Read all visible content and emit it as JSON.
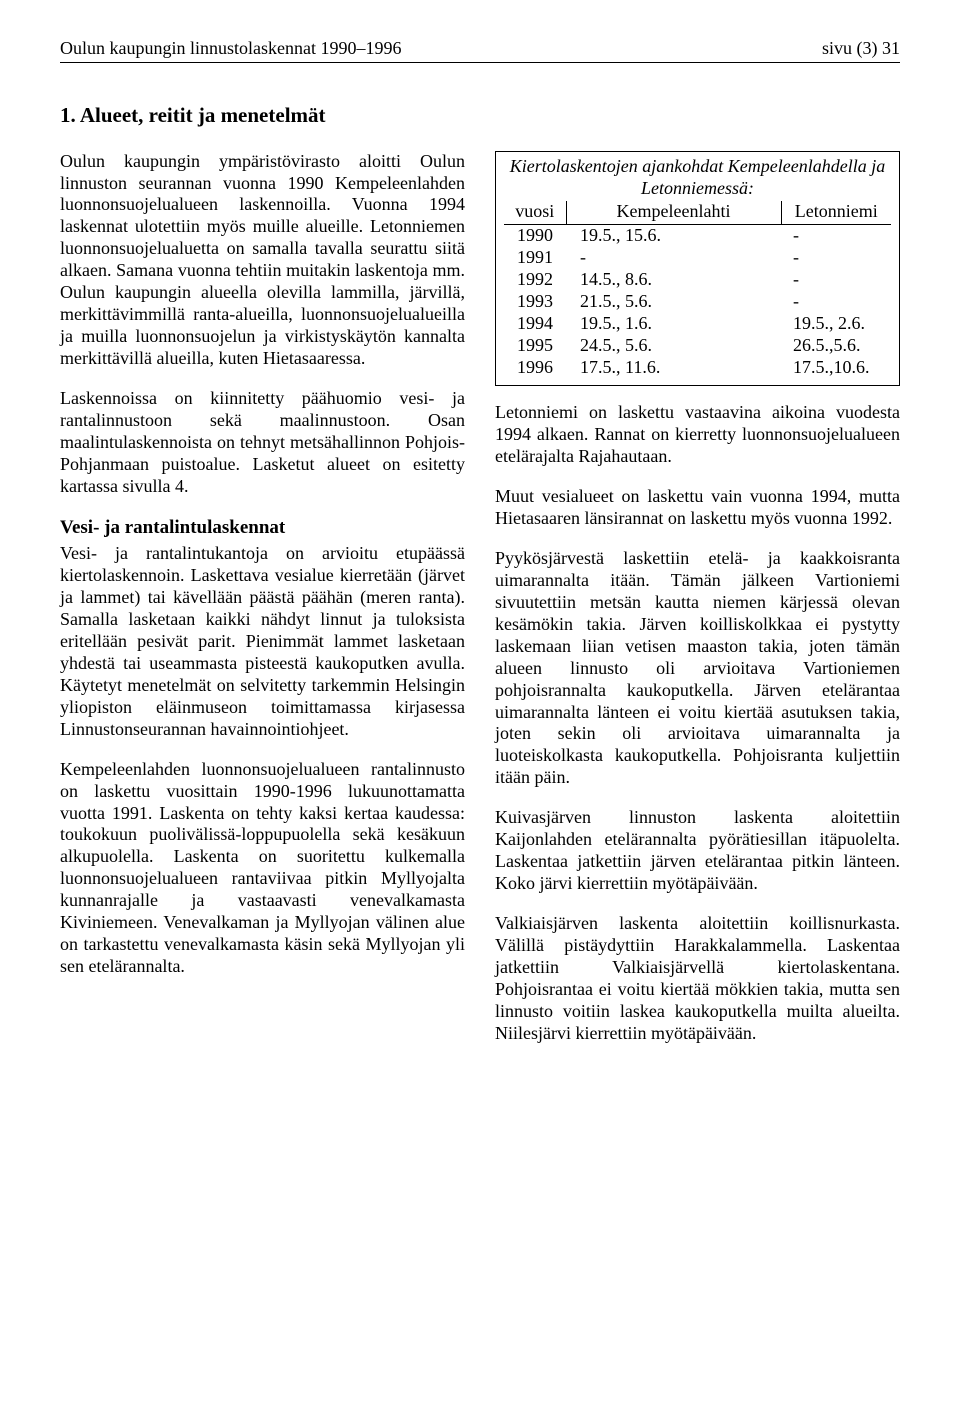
{
  "header": {
    "left": "Oulun kaupungin linnustolaskennat 1990–1996",
    "right": "sivu (3) 31"
  },
  "title": "1. Alueet, reitit ja menetelmät",
  "para1": "Oulun kaupungin ympäristövirasto aloitti Oulun linnuston seurannan vuonna 1990 Kempeleenlahden luonnonsuojelualueen laskennoilla. Vuonna 1994 laskennat ulotettiin myös muille alueille. Letonniemen luonnonsuojelualuetta on samalla tavalla seurattu siitä alkaen. Samana vuonna tehtiin muitakin laskentoja mm. Oulun kaupungin alueella olevilla lammilla, järvillä, merkittävimmillä ranta-alueilla, luonnonsuojelualueilla ja muilla luonnonsuojelun ja virkistyskäytön kannalta merkittävillä alueilla, kuten Hietasaaressa.",
  "para2": "Laskennoissa on kiinnitetty päähuomio vesi- ja rantalinnustoon sekä maalinnustoon. Osan maalintulaskennoista on tehnyt metsähallinnon Pohjois-Pohjanmaan puistoalue. Lasketut alueet on esitetty kartassa sivulla 4.",
  "h2a": "Vesi- ja rantalintulaskennat",
  "para3": "Vesi- ja rantalintukantoja on arvioitu etupäässä kiertolaskennoin. Laskettava vesialue kierretään (järvet ja lammet) tai kävellään päästä päähän (meren ranta). Samalla lasketaan kaikki nähdyt linnut ja tuloksista eritellään pesivät parit. Pienimmät lammet lasketaan yhdestä tai useammasta pisteestä kaukoputken avulla. Käytetyt menetelmät on selvitetty tarkemmin Helsingin yliopiston eläinmuseon toimittamassa kirjasessa Linnustonseurannan havainnointiohjeet.",
  "para4": "Kempeleenlahden luonnonsuojelualueen rantalinnusto on laskettu vuosittain 1990-1996 lukuunottamatta vuotta 1991. Laskenta on tehty kaksi kertaa kaudessa: toukokuun puolivälissä-loppupuolella sekä kesäkuun alkupuolella. Laskenta on suoritettu kulkemalla luonnonsuojelualueen rantaviivaa pitkin Myllyojalta kunnanrajalle ja vastaavasti venevalkamasta Kiviniemeen. Venevalkaman ja Myllyojan välinen alue on tarkastettu venevalkamasta käsin sekä Myllyojan yli sen etelärannalta.",
  "table": {
    "caption": "Kiertolaskentojen ajankohdat Kempeleenlahdella ja Letonniemessä:",
    "columns": [
      "vuosi",
      "Kempeleenlahti",
      "Letonniemi"
    ],
    "rows": [
      [
        "1990",
        "19.5., 15.6.",
        "-"
      ],
      [
        "1991",
        "-",
        "-"
      ],
      [
        "1992",
        "14.5., 8.6.",
        "-"
      ],
      [
        "1993",
        "21.5., 5.6.",
        "-"
      ],
      [
        "1994",
        "19.5., 1.6.",
        "19.5., 2.6."
      ],
      [
        "1995",
        "24.5., 5.6.",
        "26.5.,5.6."
      ],
      [
        "1996",
        "17.5., 11.6.",
        "17.5.,10.6."
      ]
    ]
  },
  "para5": "Letonniemi on laskettu vastaavina aikoina vuodesta 1994 alkaen. Rannat on kierretty luonnonsuojelualueen etelärajalta Rajahautaan.",
  "para6": "Muut vesialueet on laskettu vain vuonna 1994, mutta Hietasaaren länsirannat on laskettu myös vuonna 1992.",
  "para7": "Pyykösjärvestä laskettiin etelä- ja kaakkoisranta uimarannalta itään. Tämän jälkeen Vartioniemi sivuutettiin metsän kautta niemen kärjessä olevan kesämökin takia. Järven koilliskolkkaa ei pystytty laskemaan liian vetisen maaston takia, joten tämän alueen linnusto oli arvioitava Vartioniemen pohjoisrannalta kaukoputkella. Järven etelärantaa uimarannalta länteen ei voitu kiertää asutuksen takia, joten sekin oli arvioitava uimarannalta ja luoteiskolkasta kaukoputkella. Pohjoisranta kuljettiin itään päin.",
  "para8": "Kuivasjärven linnuston laskenta aloitettiin Kaijonlahden etelärannalta pyörätiesillan itäpuolelta. Laskentaa jatkettiin järven etelärantaa pitkin länteen. Koko järvi kierrettiin myötäpäivään.",
  "para9": "Valkiaisjärven laskenta aloitettiin koillisnurkasta. Välillä pistäydyttiin Harakkalammella. Laskentaa jatkettiin Valkiaisjärvellä kiertolaskentana. Pohjoisrantaa ei voitu kiertää mökkien takia, mutta sen linnusto voitiin laskea kaukoputkella muilta alueilta. Niilesjärvi kierrettiin myötäpäivään."
}
